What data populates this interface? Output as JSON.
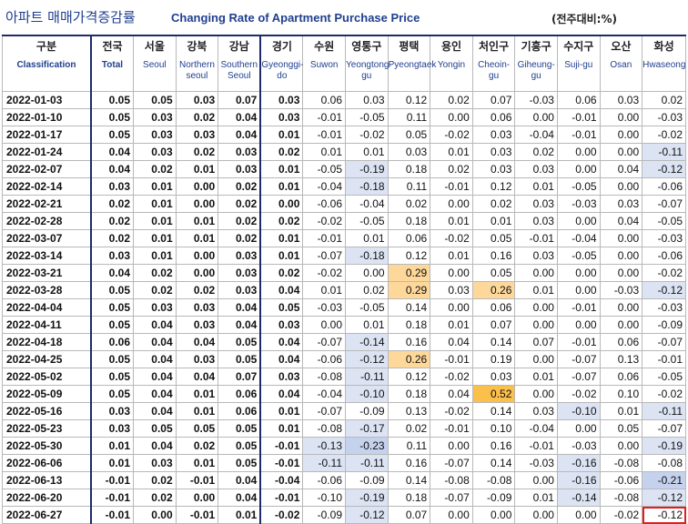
{
  "title": {
    "korean": "아파트 매매가격증감률",
    "english": "Changing Rate of Apartment Purchase Price",
    "unit": "(전주대비:%)"
  },
  "columns": [
    {
      "kr": "구분",
      "en": "Classification"
    },
    {
      "kr": "전국",
      "en": "Total"
    },
    {
      "kr": "서울",
      "en": "Seoul"
    },
    {
      "kr": "강북",
      "en": "Northern seoul"
    },
    {
      "kr": "강남",
      "en": "Southern Seoul"
    },
    {
      "kr": "경기",
      "en": "Gyeonggi-do"
    },
    {
      "kr": "수원",
      "en": "Suwon"
    },
    {
      "kr": "영통구",
      "en": "Yeongtong-gu"
    },
    {
      "kr": "평택",
      "en": "Pyeongtaek"
    },
    {
      "kr": "용인",
      "en": "Yongin"
    },
    {
      "kr": "처인구",
      "en": "Cheoin-gu"
    },
    {
      "kr": "기흥구",
      "en": "Giheung-gu"
    },
    {
      "kr": "수지구",
      "en": "Suji-gu"
    },
    {
      "kr": "오산",
      "en": "Osan"
    },
    {
      "kr": "화성",
      "en": "Hwaseong"
    }
  ],
  "rows": [
    [
      "2022-01-03",
      "0.05",
      "0.05",
      "0.03",
      "0.07",
      "0.03",
      "0.06",
      "0.03",
      "0.12",
      "0.02",
      "0.07",
      "-0.03",
      "0.06",
      "0.03",
      "0.02"
    ],
    [
      "2022-01-10",
      "0.05",
      "0.03",
      "0.02",
      "0.04",
      "0.03",
      "-0.01",
      "-0.05",
      "0.11",
      "0.00",
      "0.06",
      "0.00",
      "-0.01",
      "0.00",
      "-0.03"
    ],
    [
      "2022-01-17",
      "0.05",
      "0.03",
      "0.03",
      "0.04",
      "0.01",
      "-0.01",
      "-0.02",
      "0.05",
      "-0.02",
      "0.03",
      "-0.04",
      "-0.01",
      "0.00",
      "-0.02"
    ],
    [
      "2022-01-24",
      "0.04",
      "0.03",
      "0.02",
      "0.03",
      "0.02",
      "0.01",
      "0.01",
      "0.03",
      "0.01",
      "0.03",
      "0.02",
      "0.00",
      "0.00",
      "-0.11"
    ],
    [
      "2022-02-07",
      "0.04",
      "0.02",
      "0.01",
      "0.03",
      "0.01",
      "-0.05",
      "-0.19",
      "0.18",
      "0.02",
      "0.03",
      "0.03",
      "0.00",
      "0.04",
      "-0.12"
    ],
    [
      "2022-02-14",
      "0.03",
      "0.01",
      "0.00",
      "0.02",
      "0.01",
      "-0.04",
      "-0.18",
      "0.11",
      "-0.01",
      "0.12",
      "0.01",
      "-0.05",
      "0.00",
      "-0.06"
    ],
    [
      "2022-02-21",
      "0.02",
      "0.01",
      "0.00",
      "0.02",
      "0.00",
      "-0.06",
      "-0.04",
      "0.02",
      "0.00",
      "0.02",
      "0.03",
      "-0.03",
      "0.03",
      "-0.07"
    ],
    [
      "2022-02-28",
      "0.02",
      "0.01",
      "0.01",
      "0.02",
      "0.02",
      "-0.02",
      "-0.05",
      "0.18",
      "0.01",
      "0.01",
      "0.03",
      "0.00",
      "0.04",
      "-0.05"
    ],
    [
      "2022-03-07",
      "0.02",
      "0.01",
      "0.01",
      "0.02",
      "0.01",
      "-0.01",
      "0.01",
      "0.06",
      "-0.02",
      "0.05",
      "-0.01",
      "-0.04",
      "0.00",
      "-0.03"
    ],
    [
      "2022-03-14",
      "0.03",
      "0.01",
      "0.00",
      "0.03",
      "0.01",
      "-0.07",
      "-0.18",
      "0.12",
      "0.01",
      "0.16",
      "0.03",
      "-0.05",
      "0.00",
      "-0.06"
    ],
    [
      "2022-03-21",
      "0.04",
      "0.02",
      "0.00",
      "0.03",
      "0.02",
      "-0.02",
      "0.00",
      "0.29",
      "0.00",
      "0.05",
      "0.00",
      "0.00",
      "0.00",
      "-0.02"
    ],
    [
      "2022-03-28",
      "0.05",
      "0.02",
      "0.02",
      "0.03",
      "0.04",
      "0.01",
      "0.02",
      "0.29",
      "0.03",
      "0.26",
      "0.01",
      "0.00",
      "-0.03",
      "-0.12"
    ],
    [
      "2022-04-04",
      "0.05",
      "0.03",
      "0.03",
      "0.04",
      "0.05",
      "-0.03",
      "-0.05",
      "0.14",
      "0.00",
      "0.06",
      "0.00",
      "-0.01",
      "0.00",
      "-0.03"
    ],
    [
      "2022-04-11",
      "0.05",
      "0.04",
      "0.03",
      "0.04",
      "0.03",
      "0.00",
      "0.01",
      "0.18",
      "0.01",
      "0.07",
      "0.00",
      "0.00",
      "0.00",
      "-0.09"
    ],
    [
      "2022-04-18",
      "0.06",
      "0.04",
      "0.04",
      "0.05",
      "0.04",
      "-0.07",
      "-0.14",
      "0.16",
      "0.04",
      "0.14",
      "0.07",
      "-0.01",
      "0.06",
      "-0.07"
    ],
    [
      "2022-04-25",
      "0.05",
      "0.04",
      "0.03",
      "0.05",
      "0.04",
      "-0.06",
      "-0.12",
      "0.26",
      "-0.01",
      "0.19",
      "0.00",
      "-0.07",
      "0.13",
      "-0.01"
    ],
    [
      "2022-05-02",
      "0.05",
      "0.04",
      "0.04",
      "0.07",
      "0.03",
      "-0.08",
      "-0.11",
      "0.12",
      "-0.02",
      "0.03",
      "0.01",
      "-0.07",
      "0.06",
      "-0.05"
    ],
    [
      "2022-05-09",
      "0.05",
      "0.04",
      "0.01",
      "0.06",
      "0.04",
      "-0.04",
      "-0.10",
      "0.18",
      "0.04",
      "0.52",
      "0.00",
      "-0.02",
      "0.10",
      "-0.02"
    ],
    [
      "2022-05-16",
      "0.03",
      "0.04",
      "0.01",
      "0.06",
      "0.01",
      "-0.07",
      "-0.09",
      "0.13",
      "-0.02",
      "0.14",
      "0.03",
      "-0.10",
      "0.01",
      "-0.11"
    ],
    [
      "2022-05-23",
      "0.03",
      "0.05",
      "0.05",
      "0.05",
      "0.01",
      "-0.08",
      "-0.17",
      "0.02",
      "-0.01",
      "0.10",
      "-0.04",
      "0.00",
      "0.05",
      "-0.07"
    ],
    [
      "2022-05-30",
      "0.01",
      "0.04",
      "0.02",
      "0.05",
      "-0.01",
      "-0.13",
      "-0.23",
      "0.11",
      "0.00",
      "0.16",
      "-0.01",
      "-0.03",
      "0.00",
      "-0.19"
    ],
    [
      "2022-06-06",
      "0.01",
      "0.03",
      "0.01",
      "0.05",
      "-0.01",
      "-0.11",
      "-0.11",
      "0.16",
      "-0.07",
      "0.14",
      "-0.03",
      "-0.16",
      "-0.08",
      "-0.08"
    ],
    [
      "2022-06-13",
      "-0.01",
      "0.02",
      "-0.01",
      "0.04",
      "-0.04",
      "-0.06",
      "-0.09",
      "0.14",
      "-0.08",
      "-0.08",
      "0.00",
      "-0.16",
      "-0.06",
      "-0.21"
    ],
    [
      "2022-06-20",
      "-0.01",
      "0.02",
      "0.00",
      "0.04",
      "-0.01",
      "-0.10",
      "-0.19",
      "0.18",
      "-0.07",
      "-0.09",
      "0.01",
      "-0.14",
      "-0.08",
      "-0.12"
    ],
    [
      "2022-06-27",
      "-0.01",
      "0.00",
      "-0.01",
      "0.01",
      "-0.02",
      "-0.09",
      "-0.12",
      "0.07",
      "0.00",
      "0.00",
      "0.00",
      "0.00",
      "-0.02",
      "-0.12"
    ]
  ],
  "highlights": {
    "blue": [
      [
        3,
        14
      ],
      [
        4,
        7
      ],
      [
        4,
        14
      ],
      [
        5,
        7
      ],
      [
        9,
        7
      ],
      [
        11,
        14
      ],
      [
        14,
        7
      ],
      [
        15,
        7
      ],
      [
        16,
        7
      ],
      [
        17,
        7
      ],
      [
        18,
        12
      ],
      [
        18,
        14
      ],
      [
        19,
        7
      ],
      [
        20,
        6
      ],
      [
        20,
        14
      ],
      [
        21,
        6
      ],
      [
        21,
        7
      ],
      [
        21,
        12
      ],
      [
        22,
        12
      ],
      [
        22,
        14
      ],
      [
        23,
        7
      ],
      [
        23,
        12
      ],
      [
        23,
        14
      ],
      [
        24,
        7
      ]
    ],
    "blue_strong": [
      [
        20,
        7
      ],
      [
        22,
        14
      ]
    ],
    "orange": [
      [
        10,
        8
      ],
      [
        11,
        8
      ],
      [
        11,
        10
      ],
      [
        15,
        8
      ]
    ],
    "orange_strong": [
      [
        17,
        10
      ]
    ],
    "red_outline": [
      [
        24,
        14
      ]
    ]
  }
}
